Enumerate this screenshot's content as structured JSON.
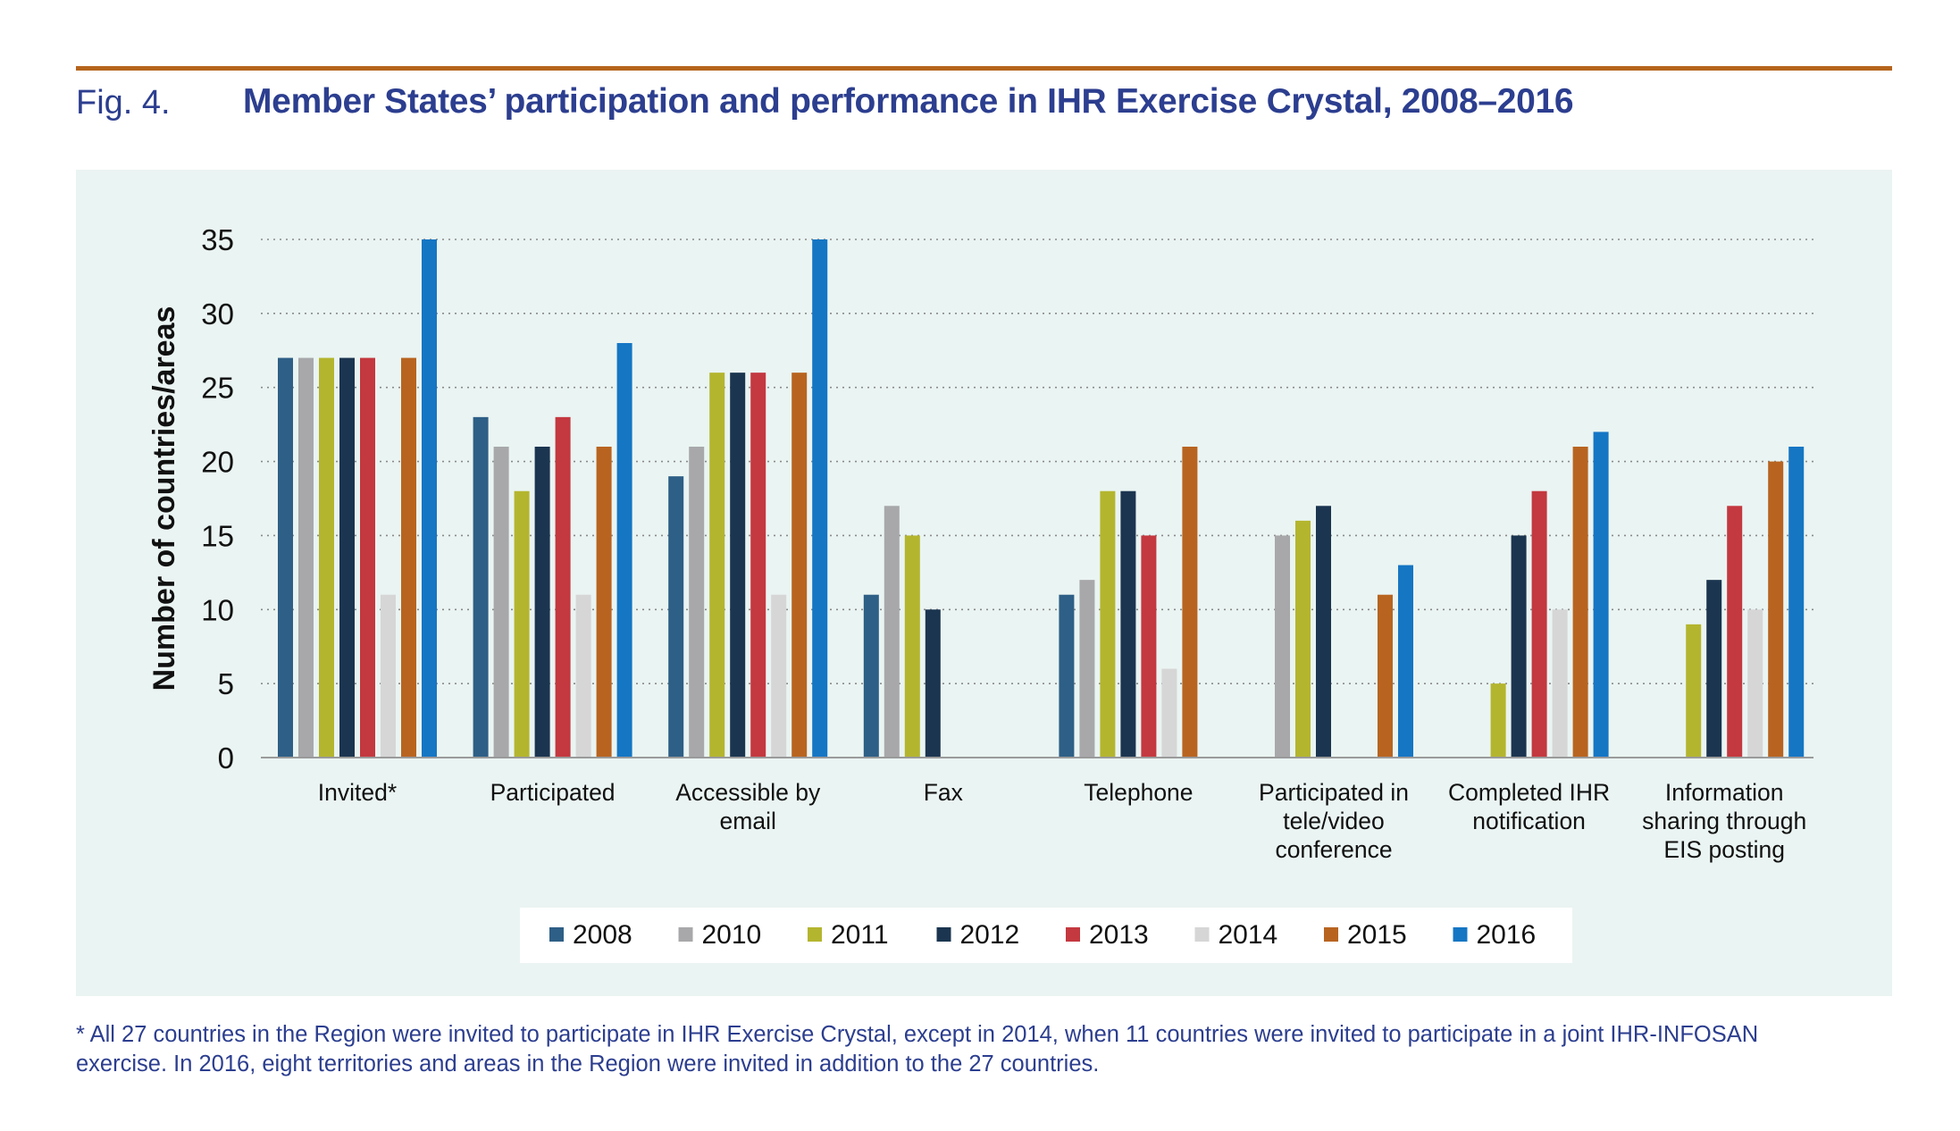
{
  "header": {
    "fig_label": "Fig. 4.",
    "title": "Member States’ participation and performance in IHR Exercise Crystal, 2008–2016"
  },
  "footnote": {
    "line1": "* All 27 countries in the Region were invited to participate in IHR Exercise Crystal, except in 2014, when 11 countries were invited to participate in a joint IHR-INFOSAN",
    "line2": "exercise. In 2016, eight territories and areas in the Region were invited in addition to the 27 countries."
  },
  "chart_data": {
    "type": "bar",
    "title": "Member States’ participation and performance in IHR Exercise Crystal, 2008–2016",
    "xlabel": "",
    "ylabel": "Number of countries/areas",
    "ylim": [
      0,
      35
    ],
    "yticks": [
      0,
      5,
      10,
      15,
      20,
      25,
      30,
      35
    ],
    "grid": true,
    "legend": "bottom",
    "categories": [
      [
        "Invited*"
      ],
      [
        "Participated"
      ],
      [
        "Accessible by",
        "email"
      ],
      [
        "Fax"
      ],
      [
        "Telephone"
      ],
      [
        "Participated in",
        "tele/video",
        "conference"
      ],
      [
        "Completed IHR",
        "notification"
      ],
      [
        "Information",
        "sharing through",
        "EIS posting"
      ]
    ],
    "series": [
      {
        "name": "2008",
        "color": "#2e5f86",
        "values": [
          27,
          23,
          19,
          11,
          11,
          null,
          null,
          null
        ]
      },
      {
        "name": "2010",
        "color": "#a8a8aa",
        "values": [
          27,
          21,
          21,
          17,
          12,
          15,
          null,
          null
        ]
      },
      {
        "name": "2011",
        "color": "#b4b52e",
        "values": [
          27,
          18,
          26,
          15,
          18,
          16,
          5,
          9
        ]
      },
      {
        "name": "2012",
        "color": "#1b3550",
        "values": [
          27,
          21,
          26,
          10,
          18,
          17,
          15,
          12
        ]
      },
      {
        "name": "2013",
        "color": "#c4383f",
        "values": [
          27,
          23,
          26,
          null,
          15,
          null,
          18,
          17
        ]
      },
      {
        "name": "2014",
        "color": "#d6d6d6",
        "values": [
          11,
          11,
          11,
          null,
          6,
          null,
          10,
          10
        ]
      },
      {
        "name": "2015",
        "color": "#b86420",
        "values": [
          27,
          21,
          26,
          null,
          21,
          11,
          21,
          20
        ]
      },
      {
        "name": "2016",
        "color": "#1576c4",
        "values": [
          35,
          28,
          35,
          null,
          null,
          13,
          22,
          21
        ]
      }
    ]
  }
}
